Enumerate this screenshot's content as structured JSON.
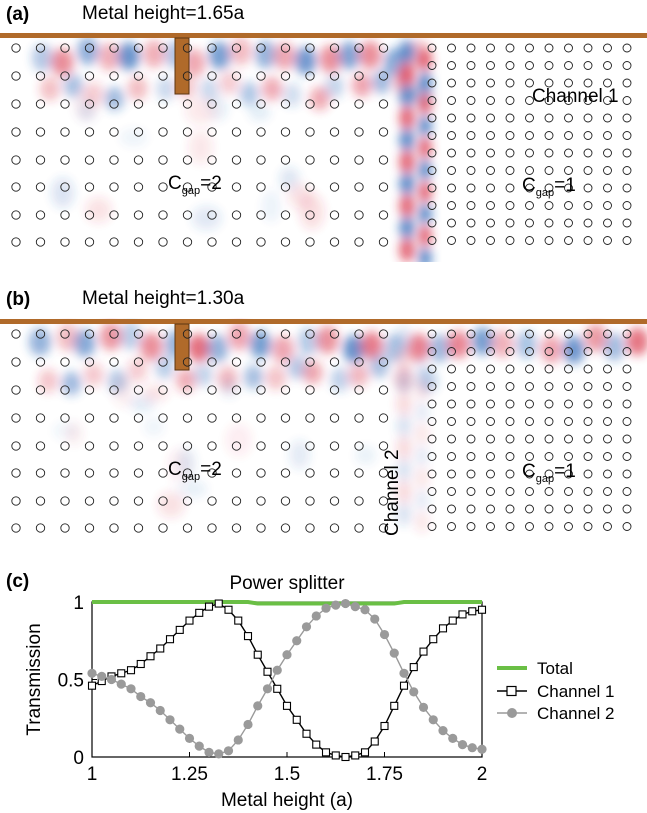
{
  "panels": [
    {
      "label": "(a)",
      "title": "Metal height=1.65a",
      "channel_label": "Channel 1",
      "gap_left": {
        "prefix": "C",
        "sub": "gap",
        "suffix": "=2"
      },
      "gap_right": {
        "prefix": "C",
        "sub": "gap",
        "suffix": "=1"
      }
    },
    {
      "label": "(b)",
      "title": "Metal height=1.30a",
      "channel_label": "Channel 2",
      "gap_left": {
        "prefix": "C",
        "sub": "gap",
        "suffix": "=2"
      },
      "gap_right": {
        "prefix": "C",
        "sub": "gap",
        "suffix": "=1"
      }
    }
  ],
  "colors": {
    "metal": "#b06a2a",
    "field_positive": "#d7263d",
    "field_negative": "#1f5fb4",
    "total": "#6abf45",
    "channel1": "#000000",
    "channel2": "#9a9a9a"
  },
  "chart": {
    "label": "(c)"
  },
  "chart_data": {
    "type": "line",
    "title": "Power splitter",
    "xlabel": "Metal height (a)",
    "ylabel": "Transmission",
    "xlim": [
      1,
      2
    ],
    "ylim": [
      0,
      1
    ],
    "xticks": [
      "1",
      "1.25",
      "1.5",
      "1.75",
      "2"
    ],
    "yticks": [
      "0",
      "0.5",
      "1"
    ],
    "legend_position": "right",
    "x": [
      1.0,
      1.025,
      1.05,
      1.075,
      1.1,
      1.125,
      1.15,
      1.175,
      1.2,
      1.225,
      1.25,
      1.275,
      1.3,
      1.325,
      1.35,
      1.375,
      1.4,
      1.425,
      1.45,
      1.475,
      1.5,
      1.525,
      1.55,
      1.575,
      1.6,
      1.625,
      1.65,
      1.675,
      1.7,
      1.725,
      1.75,
      1.775,
      1.8,
      1.825,
      1.85,
      1.875,
      1.9,
      1.925,
      1.95,
      1.975,
      2.0
    ],
    "series": [
      {
        "name": "Total",
        "marker": "none",
        "values": [
          1.0,
          1.0,
          1.0,
          1.0,
          1.0,
          1.0,
          1.0,
          1.0,
          1.0,
          1.0,
          1.0,
          1.0,
          1.0,
          1.0,
          1.0,
          1.0,
          1.0,
          0.99,
          0.99,
          0.99,
          0.99,
          0.99,
          0.99,
          0.99,
          0.99,
          0.99,
          0.99,
          0.99,
          0.99,
          0.99,
          0.99,
          0.99,
          1.0,
          1.0,
          1.0,
          1.0,
          1.0,
          1.0,
          1.0,
          1.0,
          1.0
        ]
      },
      {
        "name": "Channel 1",
        "marker": "open-square",
        "values": [
          0.46,
          0.49,
          0.52,
          0.54,
          0.56,
          0.6,
          0.65,
          0.7,
          0.76,
          0.82,
          0.88,
          0.93,
          0.97,
          0.99,
          0.95,
          0.88,
          0.78,
          0.66,
          0.55,
          0.44,
          0.33,
          0.24,
          0.15,
          0.08,
          0.03,
          0.01,
          0.0,
          0.01,
          0.03,
          0.1,
          0.2,
          0.33,
          0.46,
          0.58,
          0.68,
          0.76,
          0.83,
          0.88,
          0.92,
          0.94,
          0.95
        ]
      },
      {
        "name": "Channel 2",
        "marker": "filled-circle",
        "values": [
          0.54,
          0.52,
          0.5,
          0.47,
          0.44,
          0.39,
          0.35,
          0.3,
          0.24,
          0.18,
          0.12,
          0.07,
          0.03,
          0.02,
          0.04,
          0.11,
          0.21,
          0.33,
          0.44,
          0.56,
          0.66,
          0.75,
          0.84,
          0.91,
          0.96,
          0.98,
          0.99,
          0.97,
          0.95,
          0.89,
          0.79,
          0.67,
          0.54,
          0.42,
          0.32,
          0.24,
          0.17,
          0.12,
          0.08,
          0.06,
          0.05
        ]
      }
    ]
  }
}
